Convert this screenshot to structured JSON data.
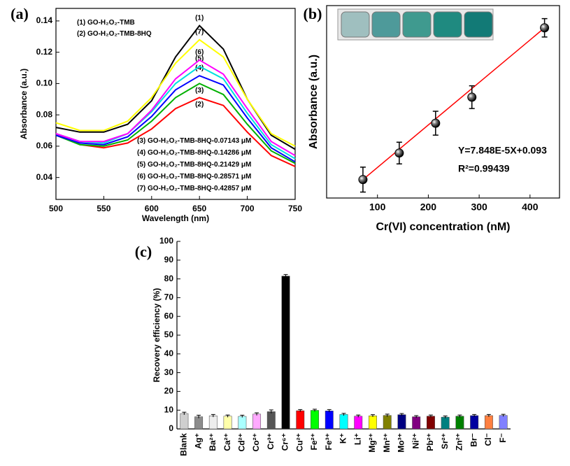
{
  "chart_data": [
    {
      "type": "line",
      "panel_label": "(a)",
      "x_label": "Wavelength (nm)",
      "y_label": "Absorbance (a.u.)",
      "x": [
        500,
        525,
        550,
        575,
        600,
        625,
        650,
        675,
        700,
        725,
        750
      ],
      "xlim": [
        500,
        750
      ],
      "xticks": [
        500,
        550,
        600,
        650,
        700,
        750
      ],
      "ylim": [
        0.026,
        0.148
      ],
      "yticks": [
        0.04,
        0.06,
        0.08,
        {
          "value": 0.1,
          "label": "0.10"
        },
        0.12,
        0.14
      ],
      "series": [
        {
          "label": "(1)",
          "name": "GO-H₂O₂-TMB",
          "color": "#000000",
          "values": [
            0.072,
            0.069,
            0.069,
            0.074,
            0.089,
            0.117,
            0.137,
            0.122,
            0.09,
            0.067,
            0.058
          ]
        },
        {
          "label": "(2)",
          "name": "GO-H₂O₂-TMB-8HQ",
          "color": "#ff0000",
          "values": [
            0.068,
            0.061,
            0.059,
            0.062,
            0.071,
            0.084,
            0.091,
            0.086,
            0.069,
            0.054,
            0.047
          ]
        },
        {
          "label": "(3)",
          "name": "GO-H₂O₂-TMB-8HQ-0.07143 μM",
          "color": "#00b000",
          "values": [
            0.067,
            0.061,
            0.06,
            0.064,
            0.076,
            0.091,
            0.1,
            0.093,
            0.074,
            0.057,
            0.049
          ]
        },
        {
          "label": "(4)",
          "name": "GO-H₂O₂-TMB-8HQ-0.14286 μM",
          "color": "#0000ff",
          "values": [
            0.067,
            0.062,
            0.061,
            0.066,
            0.079,
            0.096,
            0.105,
            0.099,
            0.078,
            0.059,
            0.05
          ]
        },
        {
          "label": "(5)",
          "name": "GO-H₂O₂-TMB-8HQ-0.21429 μM",
          "color": "#00e0e0",
          "values": [
            0.068,
            0.063,
            0.062,
            0.068,
            0.082,
            0.1,
            0.111,
            0.103,
            0.081,
            0.061,
            0.052
          ]
        },
        {
          "label": "(6)",
          "name": "GO-H₂O₂-TMB-8HQ-0.28571 μM",
          "color": "#ff00ff",
          "values": [
            0.068,
            0.063,
            0.063,
            0.068,
            0.083,
            0.103,
            0.115,
            0.106,
            0.084,
            0.063,
            0.054
          ]
        },
        {
          "label": "(7)",
          "name": "GO-H₂O₂-TMB-8HQ-0.42857 μM",
          "color": "#ffff00",
          "values": [
            0.075,
            0.07,
            0.07,
            0.076,
            0.091,
            0.113,
            0.128,
            0.117,
            0.09,
            0.068,
            0.06
          ]
        }
      ]
    },
    {
      "type": "scatter",
      "panel_label": "(b)",
      "x_label": "Cr(VI) concentration (nM)",
      "y_label": "Absorbance (a.u.)",
      "x": [
        71.43,
        142.86,
        214.29,
        285.71,
        428.57
      ],
      "values": [
        0.0986,
        0.1035,
        0.109,
        0.1138,
        0.1266
      ],
      "errors": [
        0.0023,
        0.002,
        0.0022,
        0.0021,
        0.0017
      ],
      "color": "#000000",
      "fit_line": {
        "x": [
          71.43,
          428.57
        ],
        "y": [
          0.0986,
          0.1266
        ],
        "color": "#ff0000"
      },
      "equation": "Y=7.848E-5X+0.093",
      "r_squared": "R²=0.99439",
      "xlim": [
        0,
        458
      ],
      "xticks": [
        100,
        200,
        300,
        400
      ],
      "ylim": [
        0.0952,
        0.1307
      ]
    },
    {
      "type": "bar",
      "panel_label": "(c)",
      "y_label": "Recovery efficiency (%)",
      "categories": [
        "Blank",
        "Ag⁺",
        "Ba²⁺",
        "Ca²⁺",
        "Cd²⁺",
        "Co²⁺",
        "Cr³⁺",
        "Cr⁶⁺",
        "Cu²⁺",
        "Fe²⁺",
        "Fe³⁺",
        "K⁺",
        "Li⁺",
        "Mg²⁺",
        "Mn²⁺",
        "Mo³⁺",
        "Ni²⁺",
        "Pb²⁺",
        "Sr²⁺",
        "Zn²⁺",
        "Br⁻",
        "Cl⁻",
        "F⁻"
      ],
      "values": [
        8.2,
        6.5,
        7.0,
        6.8,
        6.7,
        7.9,
        9.2,
        81.5,
        9.7,
        9.9,
        9.6,
        7.7,
        6.8,
        7.0,
        7.2,
        7.6,
        6.5,
        6.8,
        6.3,
        6.8,
        7.1,
        7.1,
        7.2
      ],
      "errors": [
        0.7,
        0.8,
        0.7,
        0.6,
        0.6,
        0.7,
        0.9,
        0.8,
        0.6,
        0.6,
        0.7,
        0.6,
        0.6,
        0.6,
        0.7,
        0.6,
        0.6,
        0.6,
        0.6,
        0.6,
        0.6,
        0.6,
        0.6
      ],
      "colors": [
        "#cfcfcf",
        "#8c8c8c",
        "#ededed",
        "#ffffaa",
        "#aaffff",
        "#ffaaff",
        "#555555",
        "#000000",
        "#ff0000",
        "#00ff00",
        "#0000ff",
        "#00ffff",
        "#ff00ff",
        "#ffff00",
        "#808000",
        "#000080",
        "#800080",
        "#800000",
        "#008080",
        "#008000",
        "#0000a0",
        "#ff8040",
        "#8080ff"
      ],
      "ylim": [
        0,
        100
      ],
      "yticks": [
        0,
        10,
        20,
        30,
        40,
        50,
        60,
        70,
        80,
        90,
        100
      ]
    }
  ]
}
